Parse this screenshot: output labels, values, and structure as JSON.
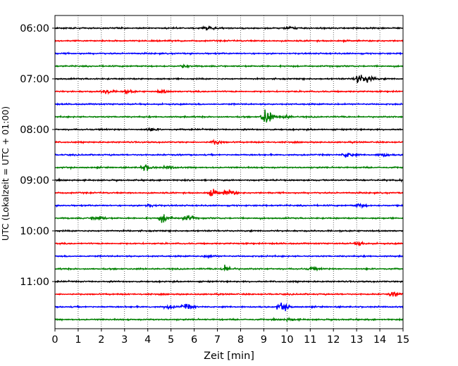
{
  "chart_data": {
    "type": "line",
    "title": "",
    "xlabel": "Zeit  [min]",
    "ylabel": "UTC (Lokalzeit = UTC + 01:00)",
    "xlim": [
      0,
      15
    ],
    "x_ticks": [
      0,
      1,
      2,
      3,
      4,
      5,
      6,
      7,
      8,
      9,
      10,
      11,
      12,
      13,
      14,
      15
    ],
    "y_tick_labels": [
      "06:00",
      "07:00",
      "08:00",
      "09:00",
      "10:00",
      "11:00"
    ],
    "x_grid": "dotted vertical lines at each minute",
    "y_grid": false,
    "trace_interval_minutes": 15,
    "start_time": "06:00",
    "color_cycle": [
      "#000000",
      "#ff0000",
      "#0000ff",
      "#008000"
    ],
    "series": [
      {
        "start": "06:00",
        "color": "#000000",
        "events": [
          {
            "min": 6.5,
            "amp": 0.35
          },
          {
            "min": 10.0,
            "amp": 0.25
          }
        ]
      },
      {
        "start": "06:15",
        "color": "#ff0000",
        "events": []
      },
      {
        "start": "06:30",
        "color": "#0000ff",
        "events": []
      },
      {
        "start": "06:45",
        "color": "#008000",
        "events": [
          {
            "min": 5.5,
            "amp": 0.2
          }
        ]
      },
      {
        "start": "07:00",
        "color": "#000000",
        "events": [
          {
            "min": 13.0,
            "amp": 0.9
          },
          {
            "min": 13.4,
            "amp": 0.6
          }
        ]
      },
      {
        "start": "07:15",
        "color": "#ff0000",
        "events": [
          {
            "min": 2.1,
            "amp": 0.45
          },
          {
            "min": 3.0,
            "amp": 0.3
          },
          {
            "min": 4.5,
            "amp": 0.3
          }
        ]
      },
      {
        "start": "07:30",
        "color": "#0000ff",
        "events": []
      },
      {
        "start": "07:45",
        "color": "#008000",
        "events": [
          {
            "min": 9.0,
            "amp": 1.5
          },
          {
            "min": 9.8,
            "amp": 0.3
          }
        ]
      },
      {
        "start": "08:00",
        "color": "#000000",
        "events": [
          {
            "min": 4.0,
            "amp": 0.25
          }
        ]
      },
      {
        "start": "08:15",
        "color": "#ff0000",
        "events": [
          {
            "min": 6.8,
            "amp": 0.35
          }
        ]
      },
      {
        "start": "08:30",
        "color": "#0000ff",
        "events": [
          {
            "min": 12.5,
            "amp": 0.45
          },
          {
            "min": 14.0,
            "amp": 0.4
          }
        ]
      },
      {
        "start": "08:45",
        "color": "#008000",
        "events": [
          {
            "min": 3.8,
            "amp": 0.5
          },
          {
            "min": 4.8,
            "amp": 0.3
          }
        ]
      },
      {
        "start": "09:00",
        "color": "#000000",
        "events": [
          {
            "min": 15.0,
            "amp": 0.5
          }
        ]
      },
      {
        "start": "09:15",
        "color": "#ff0000",
        "events": [
          {
            "min": 6.7,
            "amp": 0.6
          },
          {
            "min": 7.4,
            "amp": 0.6
          }
        ]
      },
      {
        "start": "09:30",
        "color": "#0000ff",
        "events": [
          {
            "min": 4.0,
            "amp": 0.3
          },
          {
            "min": 13.0,
            "amp": 0.3
          }
        ]
      },
      {
        "start": "09:45",
        "color": "#008000",
        "events": [
          {
            "min": 1.7,
            "amp": 0.5
          },
          {
            "min": 4.6,
            "amp": 0.8
          },
          {
            "min": 5.6,
            "amp": 0.55
          }
        ]
      },
      {
        "start": "10:00",
        "color": "#000000",
        "events": []
      },
      {
        "start": "10:15",
        "color": "#ff0000",
        "events": [
          {
            "min": 13.0,
            "amp": 0.3
          }
        ]
      },
      {
        "start": "10:30",
        "color": "#0000ff",
        "events": [
          {
            "min": 6.5,
            "amp": 0.25
          }
        ]
      },
      {
        "start": "10:45",
        "color": "#008000",
        "events": [
          {
            "min": 7.3,
            "amp": 0.5
          },
          {
            "min": 11.0,
            "amp": 0.25
          }
        ]
      },
      {
        "start": "11:00",
        "color": "#000000",
        "events": []
      },
      {
        "start": "11:15",
        "color": "#ff0000",
        "events": [
          {
            "min": 14.5,
            "amp": 0.4
          }
        ]
      },
      {
        "start": "11:30",
        "color": "#0000ff",
        "events": [
          {
            "min": 4.8,
            "amp": 0.35
          },
          {
            "min": 5.6,
            "amp": 0.45
          },
          {
            "min": 9.7,
            "amp": 0.7
          }
        ]
      },
      {
        "start": "11:45",
        "color": "#008000",
        "events": [
          {
            "min": 10.0,
            "amp": 0.2
          }
        ]
      }
    ]
  }
}
